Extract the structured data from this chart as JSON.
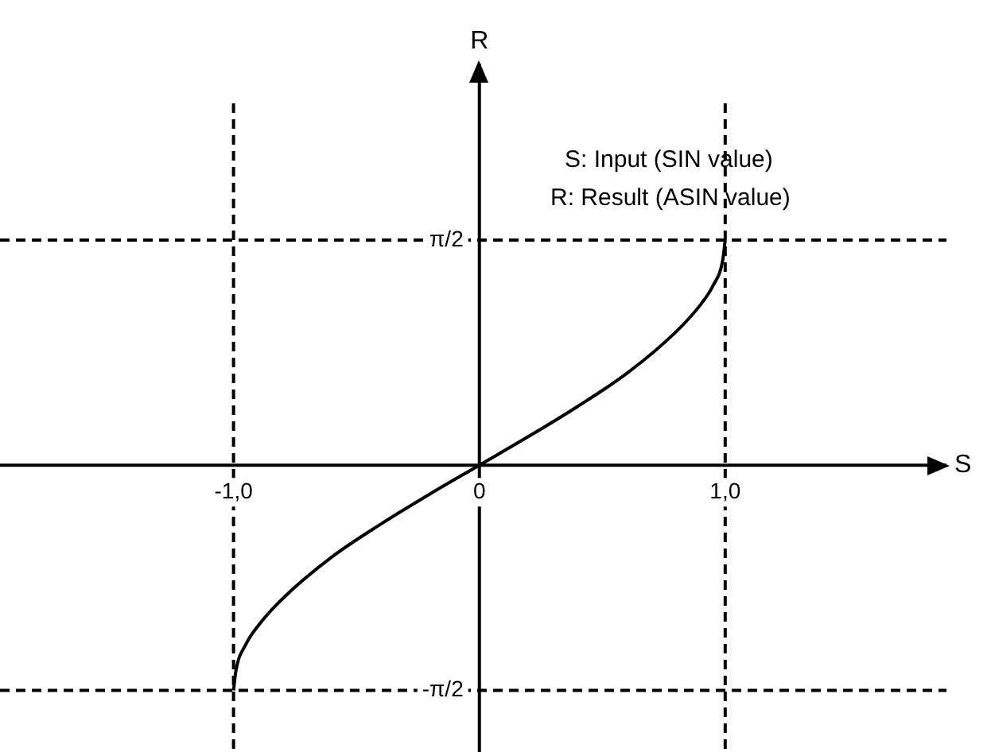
{
  "chart_data": {
    "type": "line",
    "xlabel": "S",
    "ylabel": "R",
    "annotations": [
      "S: Input (SIN value)",
      "R: Result (ASIN value)"
    ],
    "x": [
      -1,
      -0.99,
      -0.95,
      -0.9,
      -0.8,
      -0.6,
      -0.4,
      -0.2,
      0,
      0.2,
      0.4,
      0.6,
      0.8,
      0.9,
      0.95,
      0.99,
      1
    ],
    "series": [
      {
        "color": "#000000",
        "values": [
          -1.57,
          -1.43,
          -1.25,
          -1.12,
          -0.93,
          -0.64,
          -0.41,
          -0.2,
          0,
          0.2,
          0.41,
          0.64,
          0.93,
          1.12,
          1.25,
          1.43,
          1.57
        ]
      }
    ],
    "xlim": [
      -1.95,
      1.9
    ],
    "ylim": [
      -2.0,
      2.8
    ],
    "xticks": [
      {
        "value": -1,
        "label": "-1,0"
      },
      {
        "value": 0,
        "label": "0"
      },
      {
        "value": 1,
        "label": "1,0"
      }
    ],
    "yticks": [
      {
        "value": 1.57,
        "label": "π/2"
      },
      {
        "value": -1.57,
        "label": "-π/2"
      }
    ],
    "ref_lines": [
      {
        "axis": "x",
        "value": -1,
        "color": "#000000",
        "line_style": "dashed"
      },
      {
        "axis": "x",
        "value": 1,
        "color": "#000000",
        "line_style": "dashed"
      },
      {
        "axis": "y",
        "value": 1.57,
        "color": "#000000",
        "line_style": "dashed"
      },
      {
        "axis": "y",
        "value": -1.57,
        "color": "#000000",
        "line_style": "dashed"
      }
    ],
    "grid": false,
    "legend": false,
    "marker": "none",
    "line_style": "solid"
  }
}
